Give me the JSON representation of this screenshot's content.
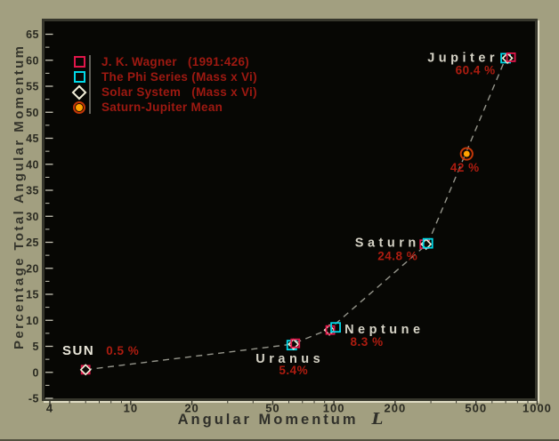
{
  "chart_data": {
    "type": "scatter",
    "x_scale": "log",
    "xlabel": "Angular Momentum L",
    "xlabel_main": "Angular Momentum",
    "xlabel_symbol": "L",
    "ylabel": "Percentage Total Angular Momentum",
    "xlim": [
      4,
      1000
    ],
    "ylim": [
      -5,
      65
    ],
    "x_ticks": [
      4,
      10,
      20,
      50,
      100,
      200,
      500,
      1000
    ],
    "y_ticks": [
      -5,
      0,
      5,
      10,
      15,
      20,
      25,
      30,
      35,
      40,
      45,
      50,
      55,
      60,
      65
    ],
    "grid": false,
    "connector_style": "dashed",
    "legend_position": "top-left",
    "points": [
      {
        "name": "SUN",
        "x": 6,
        "y": 0.5,
        "value_label": "0.5 %",
        "markers": [
          "wagner",
          "solar"
        ]
      },
      {
        "name": "Uranus",
        "x": 62,
        "y": 5.4,
        "value_label": "5.4%",
        "markers": [
          "phi",
          "solar",
          "wagner"
        ]
      },
      {
        "name": "Neptune",
        "x": 95,
        "y": 8.3,
        "value_label": "8.3 %",
        "markers": [
          "solar",
          "wagner",
          "phi"
        ]
      },
      {
        "name": "Saturn",
        "x": 290,
        "y": 24.8,
        "value_label": "24.8 %",
        "markers": [
          "wagner",
          "solar",
          "phi"
        ]
      },
      {
        "name": "Jupiter",
        "x": 700,
        "y": 60.4,
        "value_label": "60.4 %",
        "markers": [
          "phi",
          "solar",
          "wagner"
        ]
      }
    ],
    "mean_point": {
      "name": "Saturn-Jupiter Mean",
      "x": 450,
      "y": 42,
      "value_label": "42 %",
      "markers": [
        "mean"
      ]
    },
    "legend": [
      {
        "id": "wagner",
        "label": "J. K. Wagner   (1991:426)"
      },
      {
        "id": "phi",
        "label": "The Phi Series (Mass x Vi)"
      },
      {
        "id": "solar",
        "label": "Solar System   (Mass x Vi)"
      },
      {
        "id": "mean",
        "label": "Saturn-Jupiter Mean"
      }
    ]
  },
  "colors": {
    "background": "#a29f80",
    "plot_background": "#070704",
    "frame_border": "#36362c",
    "frame_highlight": "#dfdbc3",
    "axis_text": "#2b2b22",
    "tick_mark_light": "#c6c4b4",
    "dashed_line": "#95958b",
    "legend_red": "#9e1911",
    "annotation_red": "#ad1c10",
    "planet_label": "#d6d3c6",
    "sun_label": "#e9e6d9",
    "wagner": "#e0164a",
    "phi": "#00d8e8",
    "solar": "#f2eed8",
    "mean_fill": "#ffa400",
    "mean_ring": "#c33708",
    "legend_divider": "#62615a"
  }
}
